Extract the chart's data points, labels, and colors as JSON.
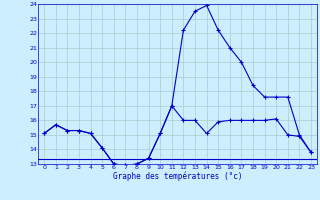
{
  "title": "Graphe des températures (°c)",
  "background_color": "#cceeff",
  "grid_color": "#aacccc",
  "line_color": "#0000cc",
  "xlim": [
    -0.5,
    23.5
  ],
  "ylim": [
    13,
    24
  ],
  "yticks": [
    13,
    14,
    15,
    16,
    17,
    18,
    19,
    20,
    21,
    22,
    23,
    24
  ],
  "xticks": [
    0,
    1,
    2,
    3,
    4,
    5,
    6,
    7,
    8,
    9,
    10,
    11,
    12,
    13,
    14,
    15,
    16,
    17,
    18,
    19,
    20,
    21,
    22,
    23
  ],
  "series1_x": [
    0,
    1,
    2,
    3,
    4,
    5,
    6,
    7,
    8,
    9,
    10,
    11,
    12,
    13,
    14,
    15,
    16,
    17,
    18,
    19,
    20,
    21,
    22,
    23
  ],
  "series1_y": [
    15.1,
    15.7,
    15.3,
    15.3,
    15.1,
    14.1,
    13.0,
    12.9,
    13.0,
    13.4,
    15.1,
    17.0,
    16.0,
    16.0,
    15.1,
    15.9,
    16.0,
    16.0,
    16.0,
    16.0,
    16.1,
    15.0,
    14.9,
    13.8
  ],
  "series2_x": [
    0,
    1,
    2,
    3,
    4,
    5,
    6,
    7,
    8,
    9,
    10,
    11,
    12,
    13,
    14,
    15,
    16,
    17,
    18,
    19,
    20,
    21,
    22,
    23
  ],
  "series2_y": [
    15.1,
    15.7,
    15.3,
    15.3,
    15.1,
    14.1,
    13.0,
    12.9,
    13.0,
    13.4,
    15.1,
    17.0,
    22.2,
    23.5,
    23.9,
    22.2,
    21.0,
    20.0,
    18.4,
    17.6,
    17.6,
    17.6,
    15.0,
    13.8
  ],
  "series3_x": [
    -0.5,
    23.5
  ],
  "series3_y": [
    13.35,
    13.35
  ]
}
